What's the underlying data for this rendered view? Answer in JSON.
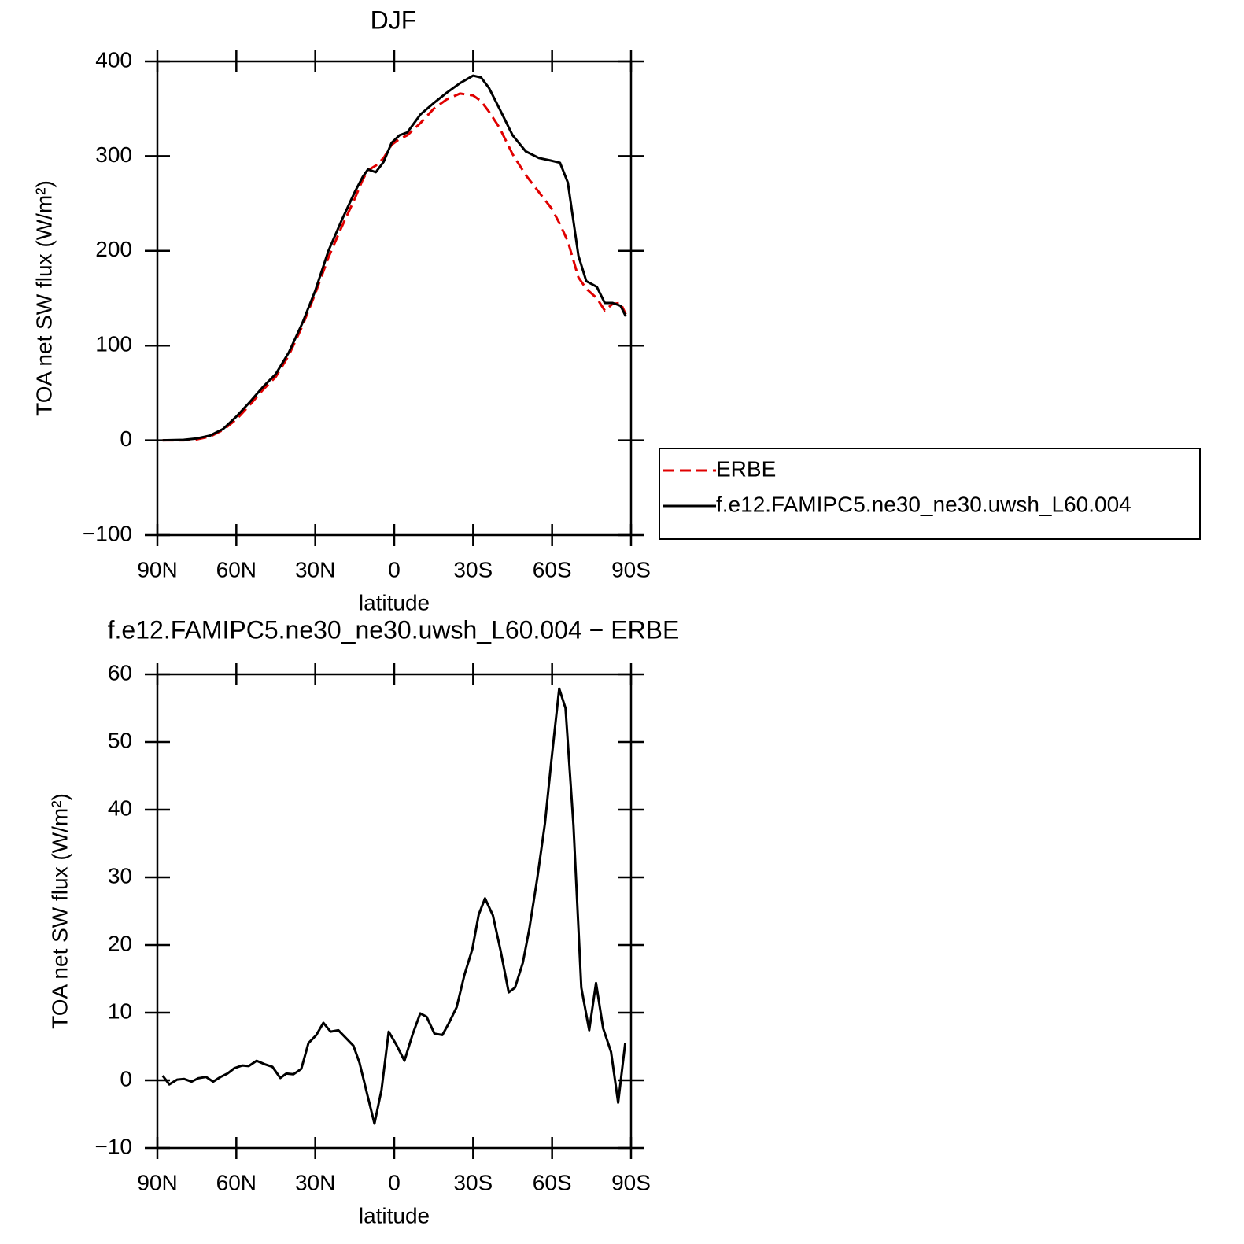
{
  "chart_data": [
    {
      "type": "line",
      "title": "DJF",
      "xlabel": "latitude",
      "ylabel": "TOA net SW flux (W/m²)",
      "x": [
        88,
        80,
        75,
        70,
        65,
        60,
        55,
        50,
        45,
        40,
        35,
        30,
        25,
        20,
        15,
        12,
        10,
        7,
        4,
        1,
        -2,
        -5,
        -10,
        -15,
        -20,
        -25,
        -30,
        -33,
        -36,
        -40,
        -45,
        -50,
        -55,
        -60,
        -63,
        -66,
        -70,
        -73,
        -77,
        -80,
        -83,
        -86,
        -88
      ],
      "series": [
        {
          "name": "ERBE",
          "color": "#e00000",
          "line_style": "dashed",
          "values": [
            0,
            0,
            1,
            4,
            11,
            22,
            37,
            53,
            67,
            90,
            120,
            155,
            193,
            225,
            255,
            275,
            285,
            290,
            298,
            312,
            318,
            322,
            335,
            350,
            360,
            366,
            364,
            358,
            347,
            330,
            302,
            280,
            262,
            244,
            228,
            210,
            172,
            160,
            150,
            137,
            144,
            145,
            133
          ]
        },
        {
          "name": "f.e12.FAMIPC5.ne30_ne30.uwsh_L60.004",
          "color": "#000000",
          "line_style": "solid",
          "values": [
            0,
            0.5,
            2,
            5,
            12,
            25,
            40,
            56,
            70,
            93,
            123,
            158,
            200,
            232,
            262,
            278,
            286,
            283,
            294,
            314,
            322,
            325,
            344,
            356,
            367,
            377,
            385,
            383,
            372,
            350,
            322,
            305,
            298,
            295,
            293,
            272,
            195,
            168,
            162,
            145,
            145,
            142,
            131
          ]
        }
      ],
      "xlim": [
        90,
        -90
      ],
      "xticks": [
        {
          "value": 90,
          "label": "90N"
        },
        {
          "value": 60,
          "label": "60N"
        },
        {
          "value": 30,
          "label": "30N"
        },
        0,
        {
          "value": -30,
          "label": "30S"
        },
        {
          "value": -60,
          "label": "60S"
        },
        {
          "value": -90,
          "label": "90S"
        }
      ],
      "ylim": [
        -100,
        400
      ],
      "yticks": [
        {
          "value": -100,
          "label": "−100"
        },
        0,
        100,
        200,
        300,
        400
      ],
      "legend": "right"
    },
    {
      "type": "line",
      "title": "f.e12.FAMIPC5.ne30_ne30.uwsh_L60.004 − ERBE",
      "xlabel": "latitude",
      "ylabel": "TOA net SW flux (W/m²)",
      "x": [
        88,
        85.5,
        82.5,
        79.8,
        77,
        74.5,
        71.5,
        68.8,
        66,
        63.4,
        60.7,
        57.7,
        55.3,
        52.3,
        49.3,
        46.3,
        43.3,
        41,
        38.3,
        35.3,
        32.6,
        29.6,
        26.9,
        24.2,
        21.2,
        18.2,
        15.5,
        13.2,
        10.1,
        7.5,
        4.8,
        2.1,
        -0.9,
        -3.9,
        -6.9,
        -9.9,
        -12.3,
        -15.3,
        -18.3,
        -20.7,
        -23.7,
        -26.7,
        -29.7,
        -32.1,
        -34.5,
        -37.5,
        -40.5,
        -43.5,
        -45.9,
        -48.9,
        -51.3,
        -54.3,
        -57.3,
        -59.7,
        -62.7,
        -65.1,
        -68.1,
        -71.1,
        -74.1,
        -76.7,
        -79.4,
        -82.4,
        -85.1,
        -87.8
      ],
      "series": [
        {
          "color": "#000000",
          "line_style": "solid",
          "values": [
            0.7,
            -0.6,
            0.1,
            0.2,
            -0.2,
            0.3,
            0.5,
            -0.2,
            0.5,
            1,
            1.8,
            2.2,
            2.1,
            2.9,
            2.4,
            2,
            0.35,
            1,
            0.9,
            1.7,
            5.5,
            6.7,
            8.5,
            7.2,
            7.4,
            6.2,
            5.1,
            2.6,
            -2.3,
            -6.4,
            -1.4,
            7.2,
            5.2,
            2.9,
            6.7,
            9.9,
            9.4,
            6.9,
            6.7,
            8.4,
            10.8,
            15.6,
            19.4,
            24.5,
            26.9,
            24.4,
            19,
            13,
            13.7,
            17.4,
            22.3,
            29.7,
            38,
            47.2,
            57.9,
            55,
            37.7,
            13.7,
            7.4,
            14.4,
            7.7,
            4.2,
            -3.3,
            5.5
          ]
        }
      ],
      "xlim": [
        90,
        -90
      ],
      "xticks": [
        {
          "value": 90,
          "label": "90N"
        },
        {
          "value": 60,
          "label": "60N"
        },
        {
          "value": 30,
          "label": "30N"
        },
        0,
        {
          "value": -30,
          "label": "30S"
        },
        {
          "value": -60,
          "label": "60S"
        },
        {
          "value": -90,
          "label": "90S"
        }
      ],
      "ylim": [
        -10,
        60
      ],
      "yticks": [
        {
          "value": -10,
          "label": "−10"
        },
        0,
        10,
        20,
        30,
        40,
        50,
        60
      ]
    }
  ]
}
